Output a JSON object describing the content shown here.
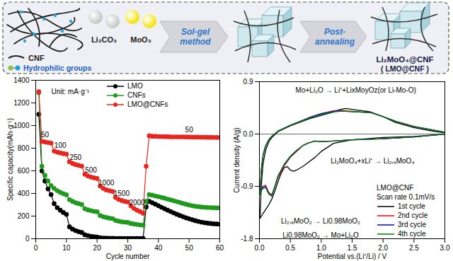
{
  "diagram": {
    "inputs": [
      {
        "label": "CNF"
      },
      {
        "label": "Li₂CO₃",
        "color": "#c4c4c4"
      },
      {
        "label": "MoO₃",
        "color": "#f3e200"
      }
    ],
    "key": {
      "label": "Hydrophilic groups"
    },
    "steps": [
      {
        "lines": [
          "Sol-gel",
          "method"
        ]
      },
      {
        "lines": [
          "Post-",
          "annealing"
        ]
      }
    ],
    "product": {
      "label": "Li₂MoO₄@CNF",
      "sublabel": "( LMO@CNF )"
    }
  },
  "chart_data": [
    {
      "type": "line",
      "x_label": "Cycle number",
      "y_label": "Specific capacity(mAh·g⁻¹)",
      "annotation": "Unit: mA·g⁻¹",
      "rates": [
        50,
        100,
        250,
        500,
        1000,
        1500,
        2000,
        50
      ],
      "x": [
        1,
        2,
        3,
        4,
        5,
        6,
        7,
        8,
        9,
        10,
        11,
        12,
        13,
        14,
        15,
        16,
        17,
        18,
        19,
        20,
        21,
        22,
        23,
        24,
        25,
        26,
        27,
        28,
        29,
        30,
        31,
        32,
        33,
        34,
        35,
        36,
        37,
        38,
        39,
        40,
        41,
        42,
        43,
        44,
        45,
        46,
        47,
        48,
        49,
        50,
        51,
        52,
        53,
        54,
        55,
        56,
        57,
        58,
        59,
        60
      ],
      "series": [
        {
          "name": "LMO",
          "color": "#000000",
          "values": [
            1100,
            600,
            510,
            440,
            390,
            310,
            275,
            252,
            232,
            215,
            105,
            85,
            72,
            62,
            55,
            35,
            28,
            22,
            18,
            15,
            8,
            6,
            5,
            4,
            4,
            3,
            3,
            2,
            2,
            2,
            2,
            2,
            2,
            2,
            2,
            280,
            330,
            318,
            305,
            292,
            278,
            265,
            252,
            240,
            228,
            216,
            205,
            195,
            185,
            176,
            168,
            160,
            153,
            147,
            142,
            138,
            135,
            132,
            130,
            128
          ]
        },
        {
          "name": "CNFs",
          "color": "#1f9a1f",
          "values": [
            1290,
            640,
            560,
            510,
            470,
            445,
            425,
            410,
            398,
            388,
            345,
            330,
            318,
            310,
            302,
            265,
            255,
            248,
            242,
            238,
            205,
            195,
            188,
            182,
            178,
            162,
            155,
            150,
            147,
            144,
            135,
            130,
            126,
            122,
            120,
            330,
            390,
            385,
            378,
            372,
            365,
            358,
            350,
            343,
            336,
            328,
            320,
            312,
            305,
            298,
            292,
            287,
            283,
            280,
            278,
            276,
            275,
            274,
            273,
            272
          ]
        },
        {
          "name": "LMO@CNFs",
          "color": "#e8251f",
          "values": [
            1300,
            860,
            855,
            850,
            845,
            775,
            765,
            758,
            752,
            748,
            680,
            665,
            655,
            648,
            642,
            570,
            555,
            545,
            538,
            532,
            465,
            445,
            432,
            425,
            418,
            365,
            348,
            338,
            330,
            325,
            290,
            268,
            252,
            240,
            225,
            640,
            910,
            905,
            905,
            903,
            903,
            902,
            902,
            900,
            900,
            900,
            900,
            900,
            899,
            899,
            898,
            898,
            898,
            897,
            897,
            896,
            896,
            895,
            895,
            895
          ]
        }
      ],
      "xlim": [
        0,
        60
      ],
      "xticks": [
        0,
        10,
        20,
        30,
        40,
        50,
        60
      ],
      "ylim": [
        0,
        1400
      ],
      "yticks": [
        0,
        200,
        400,
        600,
        800,
        1000,
        1200,
        1400
      ],
      "marker": "circle",
      "legend": "top"
    },
    {
      "type": "line",
      "x_label": "Potential vs.(Li⁺/Li) / V",
      "y_label": "Current density (A/g)",
      "annotations": [
        "Mo+Li₂O → Li⁺+LixMoyOz(or Li-Mo-O)",
        "Li₂MoO₄+xLi⁺ → Li₂₊ₓMoO₄",
        "Li₂₊ₓMoO₂ → Li0.98MoO₂",
        "Li0.98MoO₂ → Mo+Li₂O"
      ],
      "legend_title": [
        "LMO@CNF",
        "Scan rate 0.1mV/s"
      ],
      "series": [
        {
          "name": "1st cycle",
          "color": "#000000",
          "x": [
            3.0,
            2.5,
            2.0,
            1.5,
            1.2,
            1.0,
            0.9,
            0.8,
            0.7,
            0.6,
            0.55,
            0.5,
            0.45,
            0.4,
            0.35,
            0.3,
            0.25,
            0.2,
            0.15,
            0.1,
            0.05,
            0.01,
            0.03,
            0.06,
            0.1,
            0.15,
            0.2,
            0.3,
            0.5,
            0.8,
            1.0,
            1.2,
            1.3,
            1.4,
            1.6,
            1.8,
            2.0,
            2.2,
            2.5,
            2.8,
            3.0
          ],
          "values": [
            0.0,
            -0.04,
            -0.06,
            -0.1,
            -0.16,
            -0.3,
            -0.4,
            -0.48,
            -0.56,
            -0.62,
            -0.64,
            -0.62,
            -0.56,
            -0.58,
            -0.68,
            -0.82,
            -0.98,
            -1.12,
            -1.22,
            -1.3,
            -1.38,
            -1.45,
            -0.9,
            -0.5,
            -0.28,
            -0.14,
            -0.06,
            0.04,
            0.14,
            0.26,
            0.32,
            0.38,
            0.42,
            0.44,
            0.41,
            0.38,
            0.3,
            0.2,
            0.11,
            0.05,
            0.02
          ]
        },
        {
          "name": "2nd cycle",
          "color": "#ff0000",
          "x": [
            3.0,
            2.5,
            2.0,
            1.5,
            1.2,
            1.0,
            0.9,
            0.8,
            0.7,
            0.6,
            0.5,
            0.4,
            0.3,
            0.25,
            0.2,
            0.15,
            0.1,
            0.05,
            0.01,
            0.03,
            0.06,
            0.1,
            0.15,
            0.2,
            0.3,
            0.5,
            0.8,
            1.0,
            1.2,
            1.3,
            1.4,
            1.6,
            1.8,
            2.0,
            2.2,
            2.5,
            2.8,
            3.0
          ],
          "values": [
            0.0,
            -0.05,
            -0.08,
            -0.1,
            -0.12,
            -0.13,
            -0.12,
            -0.15,
            -0.2,
            -0.3,
            -0.4,
            -0.55,
            -0.75,
            -0.9,
            -1.05,
            -1.0,
            -0.88,
            -0.9,
            -1.0,
            -0.6,
            -0.35,
            -0.2,
            -0.1,
            -0.04,
            0.05,
            0.15,
            0.28,
            0.35,
            0.4,
            0.41,
            0.4,
            0.38,
            0.37,
            0.3,
            0.22,
            0.13,
            0.07,
            0.03
          ]
        },
        {
          "name": "3rd cycle",
          "color": "#0000ff",
          "x": [
            3.0,
            2.5,
            2.0,
            1.5,
            1.2,
            1.0,
            0.9,
            0.8,
            0.7,
            0.6,
            0.5,
            0.4,
            0.3,
            0.25,
            0.2,
            0.15,
            0.1,
            0.05,
            0.01,
            0.03,
            0.06,
            0.1,
            0.15,
            0.2,
            0.3,
            0.5,
            0.8,
            1.0,
            1.2,
            1.3,
            1.4,
            1.6,
            1.8,
            2.0,
            2.2,
            2.5,
            2.8,
            3.0
          ],
          "values": [
            0.0,
            -0.05,
            -0.08,
            -0.1,
            -0.12,
            -0.13,
            -0.12,
            -0.15,
            -0.2,
            -0.29,
            -0.39,
            -0.53,
            -0.73,
            -0.9,
            -1.06,
            -1.02,
            -0.9,
            -0.92,
            -1.02,
            -0.62,
            -0.36,
            -0.2,
            -0.1,
            -0.04,
            0.05,
            0.15,
            0.28,
            0.35,
            0.39,
            0.4,
            0.39,
            0.38,
            0.37,
            0.3,
            0.22,
            0.13,
            0.07,
            0.03
          ]
        },
        {
          "name": "4th cycle",
          "color": "#008000",
          "x": [
            3.0,
            2.5,
            2.0,
            1.5,
            1.2,
            1.0,
            0.9,
            0.8,
            0.7,
            0.6,
            0.5,
            0.4,
            0.3,
            0.25,
            0.2,
            0.15,
            0.1,
            0.05,
            0.01,
            0.03,
            0.06,
            0.1,
            0.15,
            0.2,
            0.3,
            0.5,
            0.8,
            1.0,
            1.2,
            1.3,
            1.4,
            1.6,
            1.8,
            2.0,
            2.2,
            2.5,
            2.8,
            3.0
          ],
          "values": [
            0.0,
            -0.05,
            -0.08,
            -0.1,
            -0.12,
            -0.13,
            -0.12,
            -0.15,
            -0.2,
            -0.28,
            -0.38,
            -0.52,
            -0.72,
            -0.9,
            -1.07,
            -1.03,
            -0.92,
            -0.94,
            -1.04,
            -0.63,
            -0.37,
            -0.21,
            -0.1,
            -0.04,
            0.05,
            0.15,
            0.27,
            0.34,
            0.38,
            0.39,
            0.39,
            0.38,
            0.37,
            0.3,
            0.22,
            0.13,
            0.07,
            0.03
          ]
        }
      ],
      "xlim": [
        0,
        3
      ],
      "xticks": [
        {
          "value": 0,
          "label": "0.0"
        },
        0.5,
        {
          "value": 1,
          "label": "1.0"
        },
        1.5,
        {
          "value": 2,
          "label": "2.0"
        },
        2.5,
        {
          "value": 3,
          "label": "3.0"
        }
      ],
      "ylim": [
        -1.8,
        0.9
      ],
      "yticks": [
        -1.8,
        -0.9,
        {
          "value": 0,
          "label": "0.0"
        },
        0.9
      ],
      "line_style": "solid",
      "legend": "bottom-right"
    }
  ]
}
